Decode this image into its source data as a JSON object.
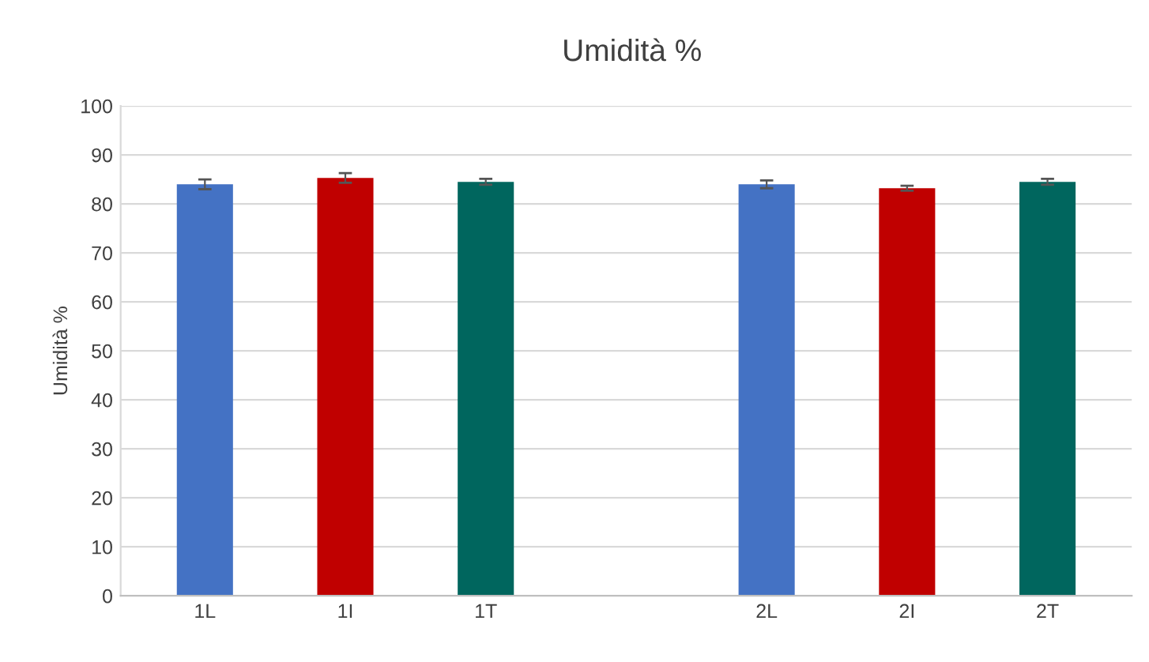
{
  "chart_data": {
    "type": "bar",
    "title": "Umidità %",
    "ylabel": "Umidità %",
    "categories": [
      "1L",
      "1I",
      "1T",
      null,
      "2L",
      "2I",
      "2T"
    ],
    "values": [
      84,
      85.3,
      84.5,
      null,
      84,
      83.2,
      84.5
    ],
    "errors": [
      1,
      1,
      0.6,
      null,
      0.8,
      0.5,
      0.6
    ],
    "colors": [
      "#4472c4",
      "#c00000",
      "#00665e",
      null,
      "#4472c4",
      "#c00000",
      "#00665e"
    ],
    "ylim": [
      0,
      100
    ],
    "yticks": [
      0,
      10,
      20,
      30,
      40,
      50,
      60,
      70,
      80,
      90,
      100
    ],
    "grid": "y",
    "legend": false
  }
}
